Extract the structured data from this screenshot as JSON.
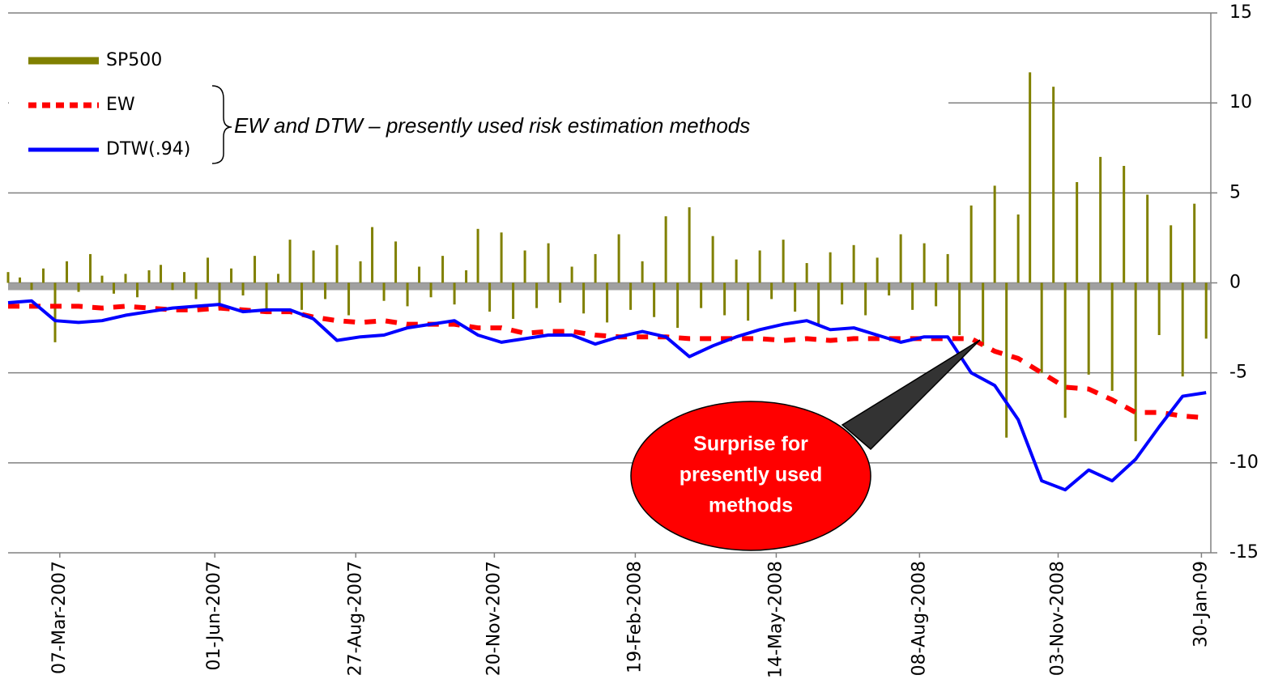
{
  "chart_data": {
    "type": "bar",
    "xlim": [
      0,
      512
    ],
    "xticks": [
      {
        "value": 22,
        "label": "07-Mar-2007"
      },
      {
        "value": 88,
        "label": "01-Jun-2007"
      },
      {
        "value": 148,
        "label": "27-Aug-2007"
      },
      {
        "value": 207,
        "label": "20-Nov-2007"
      },
      {
        "value": 267,
        "label": "19-Feb-2008"
      },
      {
        "value": 327,
        "label": "14-May-2008"
      },
      {
        "value": 388,
        "label": "08-Aug-2008"
      },
      {
        "value": 447,
        "label": "03-Nov-2008"
      },
      {
        "value": 508,
        "label": "30-Jan-09"
      }
    ],
    "ylim": [
      -15,
      15
    ],
    "yticks": [
      15,
      10,
      5,
      0,
      -5,
      -10,
      -15
    ],
    "grid": true,
    "legend": "upper left",
    "series": [
      {
        "name": "SP500",
        "type": "bar",
        "color": "#808000",
        "x": [
          0,
          5,
          10,
          15,
          20,
          25,
          30,
          35,
          40,
          45,
          50,
          55,
          60,
          65,
          70,
          75,
          80,
          85,
          90,
          95,
          100,
          105,
          110,
          115,
          120,
          125,
          130,
          135,
          140,
          145,
          150,
          155,
          160,
          165,
          170,
          175,
          180,
          185,
          190,
          195,
          200,
          205,
          210,
          215,
          220,
          225,
          230,
          235,
          240,
          245,
          250,
          255,
          260,
          265,
          270,
          275,
          280,
          285,
          290,
          295,
          300,
          305,
          310,
          315,
          320,
          325,
          330,
          335,
          340,
          345,
          350,
          355,
          360,
          365,
          370,
          375,
          380,
          385,
          390,
          395,
          400,
          405,
          410,
          415,
          420,
          425,
          430,
          435,
          440,
          445,
          450,
          455,
          460,
          465,
          470,
          475,
          480,
          485,
          490,
          495,
          500,
          505,
          510
        ],
        "values": [
          0.6,
          0.3,
          -0.4,
          0.8,
          -3.3,
          1.2,
          -0.5,
          1.6,
          0.4,
          -0.6,
          0.5,
          -0.8,
          0.7,
          1.0,
          -0.4,
          0.6,
          -0.9,
          1.4,
          -1.2,
          0.8,
          -0.7,
          1.5,
          -1.6,
          0.5,
          2.4,
          -1.5,
          1.8,
          -0.9,
          2.1,
          -1.8,
          1.2,
          3.1,
          -1.0,
          2.3,
          -1.3,
          0.9,
          -0.8,
          1.5,
          -1.2,
          0.7,
          3.0,
          -1.6,
          2.8,
          -2.0,
          1.8,
          -1.4,
          2.2,
          -1.1,
          0.9,
          -1.7,
          1.6,
          -2.2,
          2.7,
          -1.5,
          1.2,
          -1.9,
          3.7,
          -2.5,
          4.2,
          -1.4,
          2.6,
          -1.8,
          1.3,
          -2.1,
          1.8,
          -0.9,
          2.4,
          -1.6,
          1.1,
          -2.3,
          1.7,
          -1.2,
          2.1,
          -1.8,
          1.4,
          -0.7,
          2.7,
          -1.5,
          2.2,
          -1.3,
          1.6,
          -2.9,
          4.3,
          -3.5,
          5.4,
          -8.6,
          3.8,
          11.7,
          -5.0,
          10.9,
          -7.5,
          5.6,
          -5.1,
          7.0,
          -6.0,
          6.5,
          -8.8,
          4.9,
          -2.9,
          3.2,
          -5.2,
          4.4,
          -3.1
        ]
      },
      {
        "name": "EW",
        "type": "line",
        "dash": "dotted",
        "color": "#ff0000",
        "x": [
          0,
          10,
          20,
          30,
          40,
          50,
          60,
          70,
          80,
          90,
          100,
          110,
          120,
          130,
          140,
          150,
          160,
          170,
          180,
          190,
          200,
          210,
          220,
          230,
          240,
          250,
          260,
          270,
          280,
          290,
          300,
          310,
          320,
          330,
          340,
          350,
          360,
          370,
          380,
          390,
          400,
          410,
          420,
          430,
          440,
          450,
          460,
          470,
          480,
          490,
          500,
          510
        ],
        "values": [
          -1.3,
          -1.3,
          -1.3,
          -1.3,
          -1.4,
          -1.3,
          -1.4,
          -1.5,
          -1.5,
          -1.4,
          -1.5,
          -1.6,
          -1.6,
          -1.9,
          -2.1,
          -2.2,
          -2.1,
          -2.3,
          -2.3,
          -2.3,
          -2.5,
          -2.5,
          -2.8,
          -2.7,
          -2.7,
          -2.9,
          -3.0,
          -3.0,
          -3.0,
          -3.1,
          -3.1,
          -3.1,
          -3.1,
          -3.2,
          -3.1,
          -3.2,
          -3.1,
          -3.1,
          -3.1,
          -3.1,
          -3.1,
          -3.1,
          -3.8,
          -4.2,
          -5.0,
          -5.8,
          -5.9,
          -6.5,
          -7.2,
          -7.2,
          -7.4,
          -7.5
        ]
      },
      {
        "name": "DTW(.94)",
        "type": "line",
        "dash": "solid",
        "color": "#0000ff",
        "x": [
          0,
          10,
          20,
          30,
          40,
          50,
          60,
          70,
          80,
          90,
          100,
          110,
          120,
          130,
          140,
          150,
          160,
          170,
          180,
          190,
          200,
          210,
          220,
          230,
          240,
          250,
          260,
          270,
          280,
          290,
          300,
          310,
          320,
          330,
          340,
          350,
          360,
          370,
          380,
          390,
          400,
          410,
          420,
          430,
          440,
          450,
          460,
          470,
          480,
          490,
          500,
          510
        ],
        "values": [
          -1.1,
          -1.0,
          -2.1,
          -2.2,
          -2.1,
          -1.8,
          -1.6,
          -1.4,
          -1.3,
          -1.2,
          -1.6,
          -1.5,
          -1.5,
          -2.0,
          -3.2,
          -3.0,
          -2.9,
          -2.5,
          -2.3,
          -2.1,
          -2.9,
          -3.3,
          -3.1,
          -2.9,
          -2.9,
          -3.4,
          -3.0,
          -2.7,
          -3.0,
          -4.1,
          -3.5,
          -3.0,
          -2.6,
          -2.3,
          -2.1,
          -2.6,
          -2.5,
          -2.9,
          -3.3,
          -3.0,
          -3.0,
          -5.0,
          -5.7,
          -7.6,
          -11.0,
          -11.5,
          -10.4,
          -11.0,
          -9.8,
          -8.0,
          -6.3,
          -6.1
        ]
      }
    ],
    "annotations": [
      {
        "text": "EW and DTW – presently used risk estimation methods"
      },
      {
        "text": [
          "Surprise for",
          "presently used",
          "methods"
        ]
      }
    ]
  }
}
